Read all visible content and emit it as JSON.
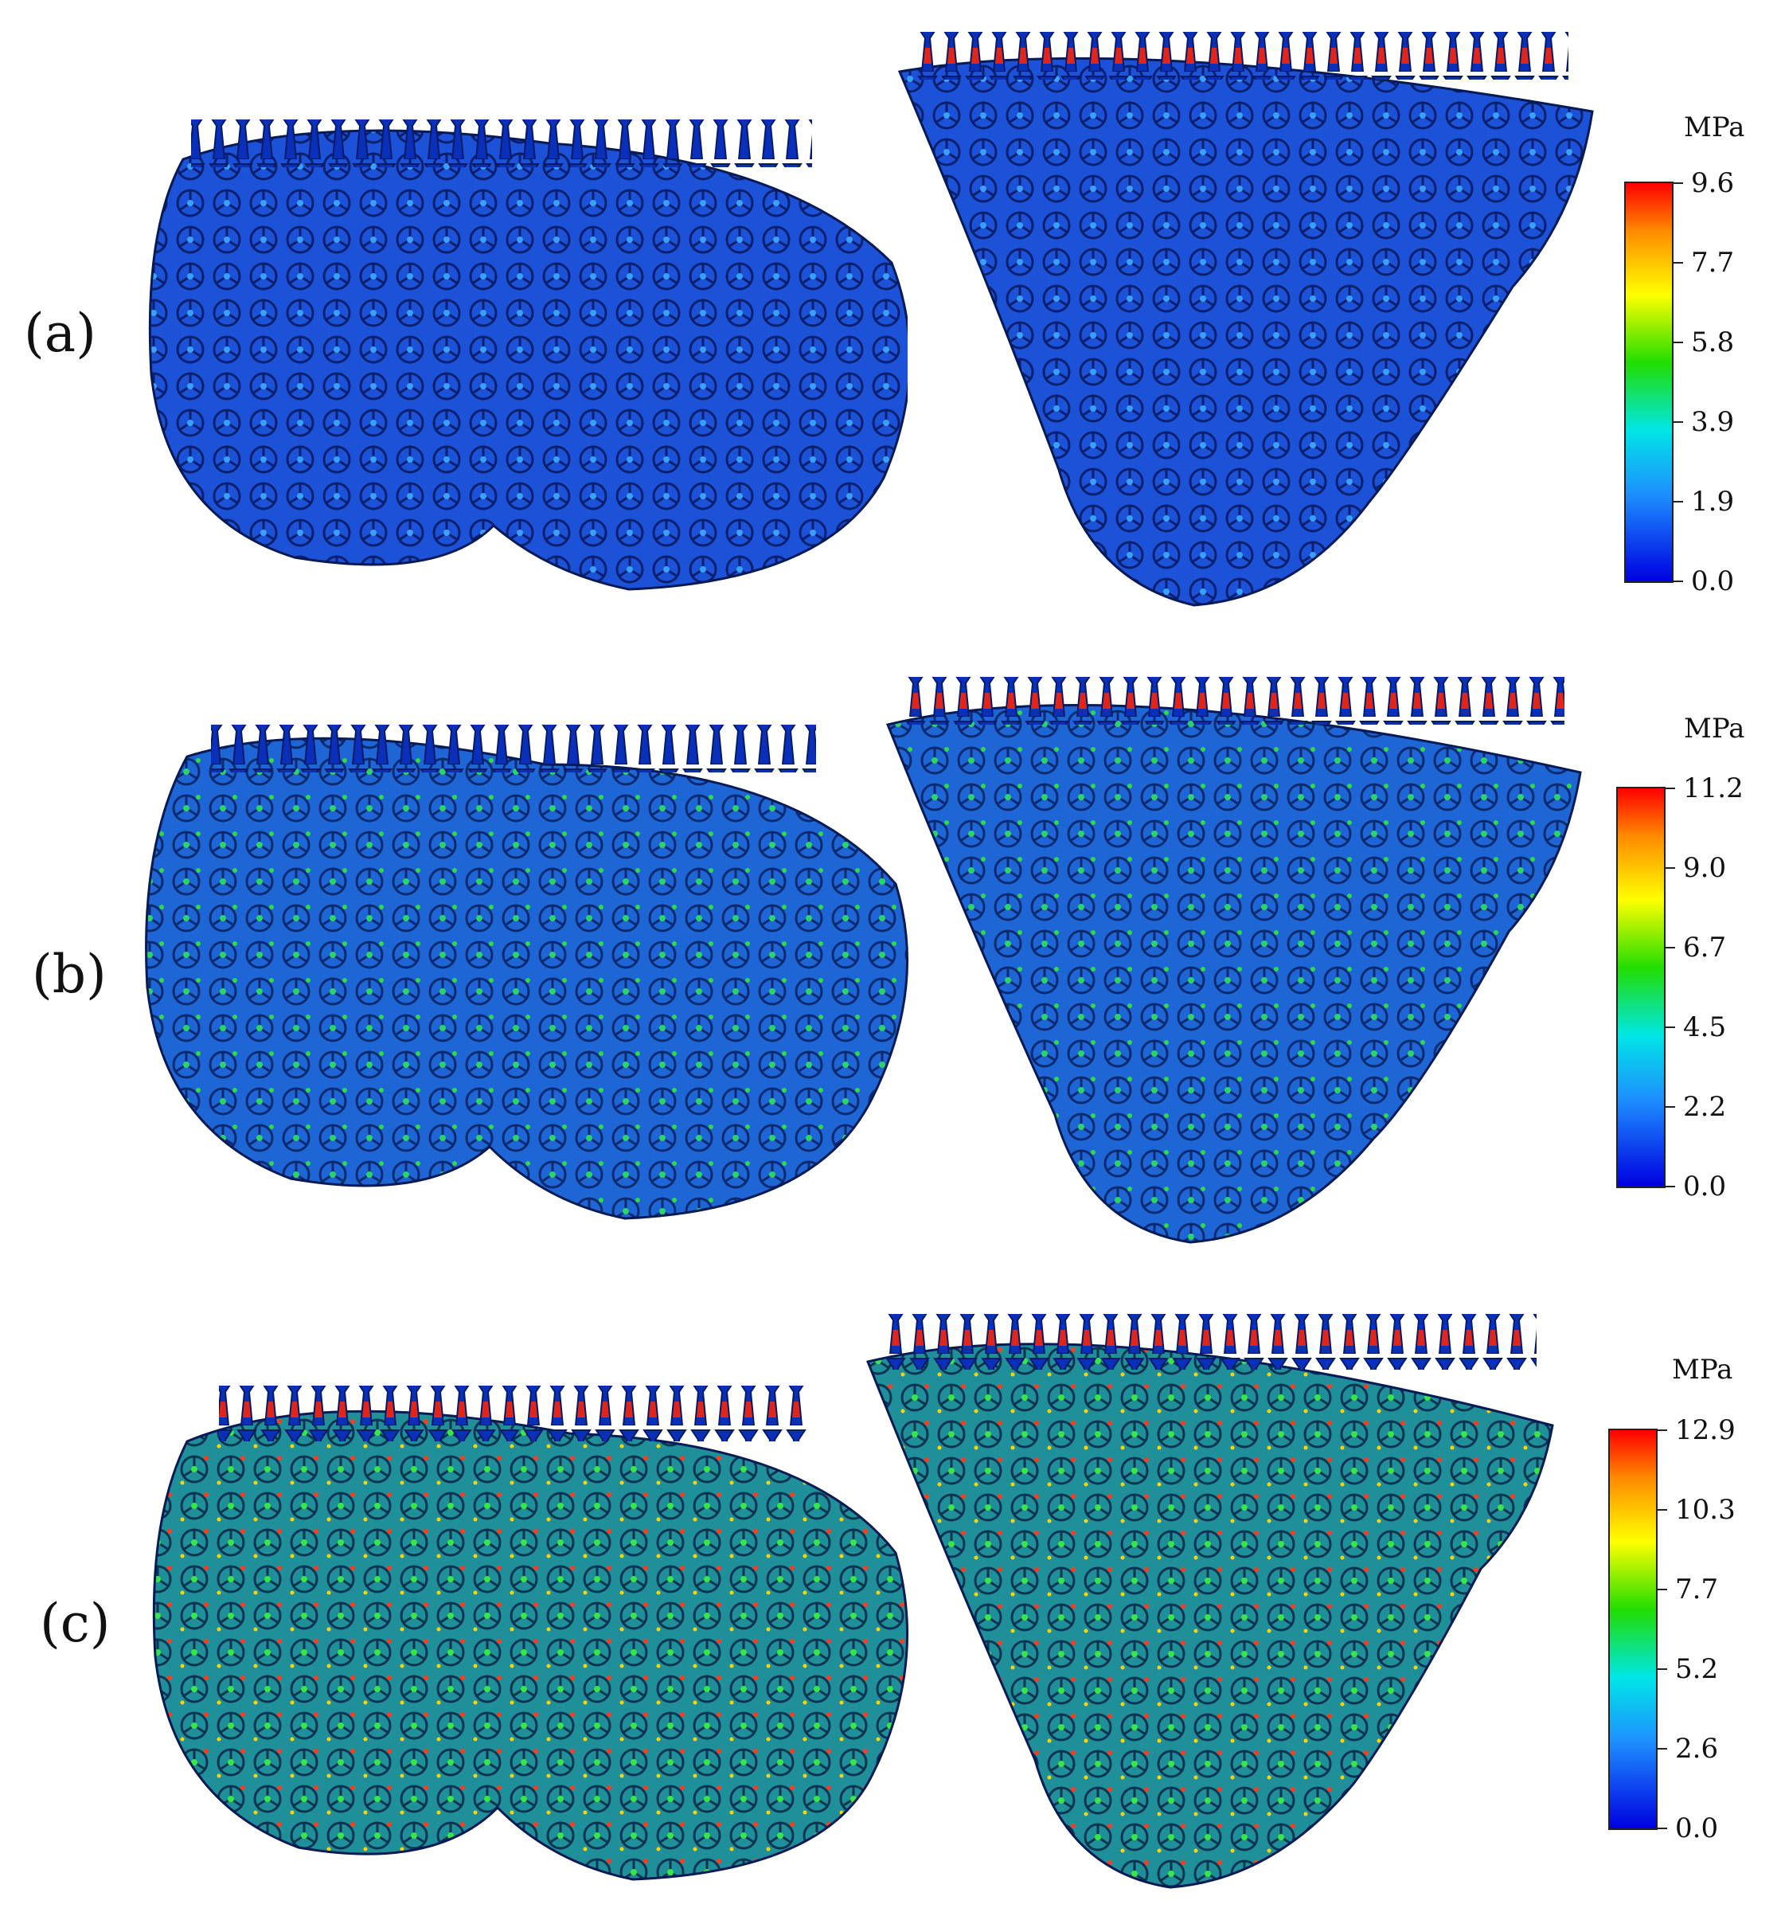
{
  "panels": [
    {
      "label": "(a)",
      "unit": "MPa",
      "scale": [
        "9.6",
        "7.7",
        "5.8",
        "3.9",
        "1.9",
        "0.0"
      ]
    },
    {
      "label": "(b)",
      "unit": "MPa",
      "scale": [
        "11.2",
        "9.0",
        "6.7",
        "4.5",
        "2.2",
        "0.0"
      ]
    },
    {
      "label": "(c)",
      "unit": "MPa",
      "scale": [
        "12.9",
        "10.3",
        "7.7",
        "5.2",
        "2.6",
        "0.0"
      ]
    }
  ],
  "colormap": [
    "#0000e0",
    "#1e90ff",
    "#00e6e6",
    "#22dd00",
    "#ffff00",
    "#ff8a00",
    "#ff0000"
  ],
  "scene": {
    "shape_left": "kidney-shaped lattice scaffold",
    "shape_right": "tapered lattice scaffold",
    "dominant_color": "#1a4fd6"
  }
}
